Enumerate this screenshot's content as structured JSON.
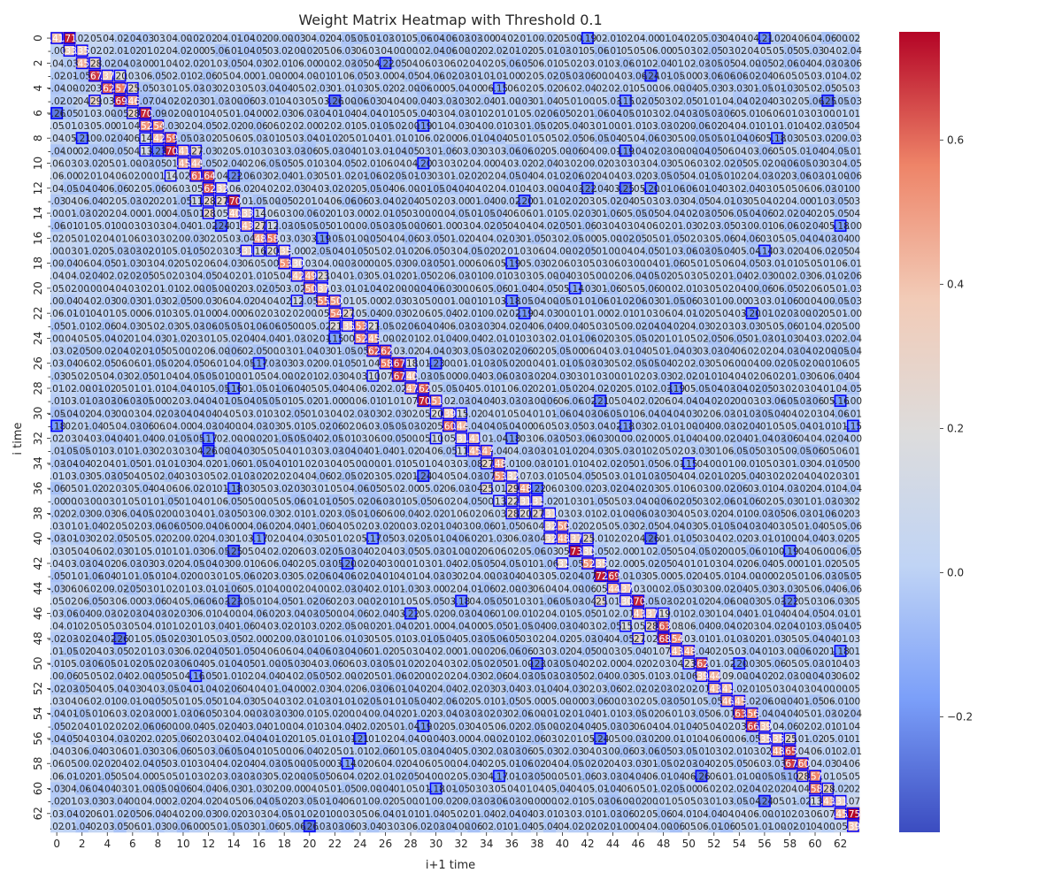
{
  "chart_data": {
    "type": "heatmap",
    "title": "Weight Matrix Heatmap with Threshold 0.1",
    "xlabel": "i+1 time",
    "ylabel": "i time",
    "rows": 64,
    "cols": 64,
    "x_tick_labels": [
      "0",
      "2",
      "4",
      "6",
      "8",
      "10",
      "12",
      "14",
      "16",
      "18",
      "20",
      "22",
      "24",
      "26",
      "28",
      "30",
      "32",
      "34",
      "36",
      "38",
      "40",
      "42",
      "44",
      "46",
      "48",
      "50",
      "52",
      "54",
      "56",
      "58",
      "60",
      "62"
    ],
    "y_tick_labels": [
      "0",
      "2",
      "4",
      "6",
      "8",
      "10",
      "12",
      "14",
      "16",
      "18",
      "20",
      "22",
      "24",
      "26",
      "28",
      "30",
      "32",
      "34",
      "36",
      "38",
      "40",
      "42",
      "44",
      "46",
      "48",
      "50",
      "52",
      "54",
      "56",
      "58",
      "60",
      "62"
    ],
    "color_range": [
      -0.36,
      0.75
    ],
    "colorbar_ticks": [
      "0.6",
      "0.4",
      "0.2",
      "0.0",
      "−0.2"
    ],
    "colorbar_tick_values": [
      0.6,
      0.4,
      0.2,
      0.0,
      -0.2
    ],
    "colormap": "coolwarm",
    "colormap_stops": [
      "#3b4cc0",
      "#7b9ff9",
      "#c0d4f5",
      "#dddcdc",
      "#f2cbb7",
      "#ee8468",
      "#b40426"
    ],
    "threshold": 0.1,
    "threshold_outline_color": "#0000ff",
    "annotated": true,
    "notes": "Cell values are noisy, mostly near 0 with larger weights along the near-diagonal band."
  }
}
